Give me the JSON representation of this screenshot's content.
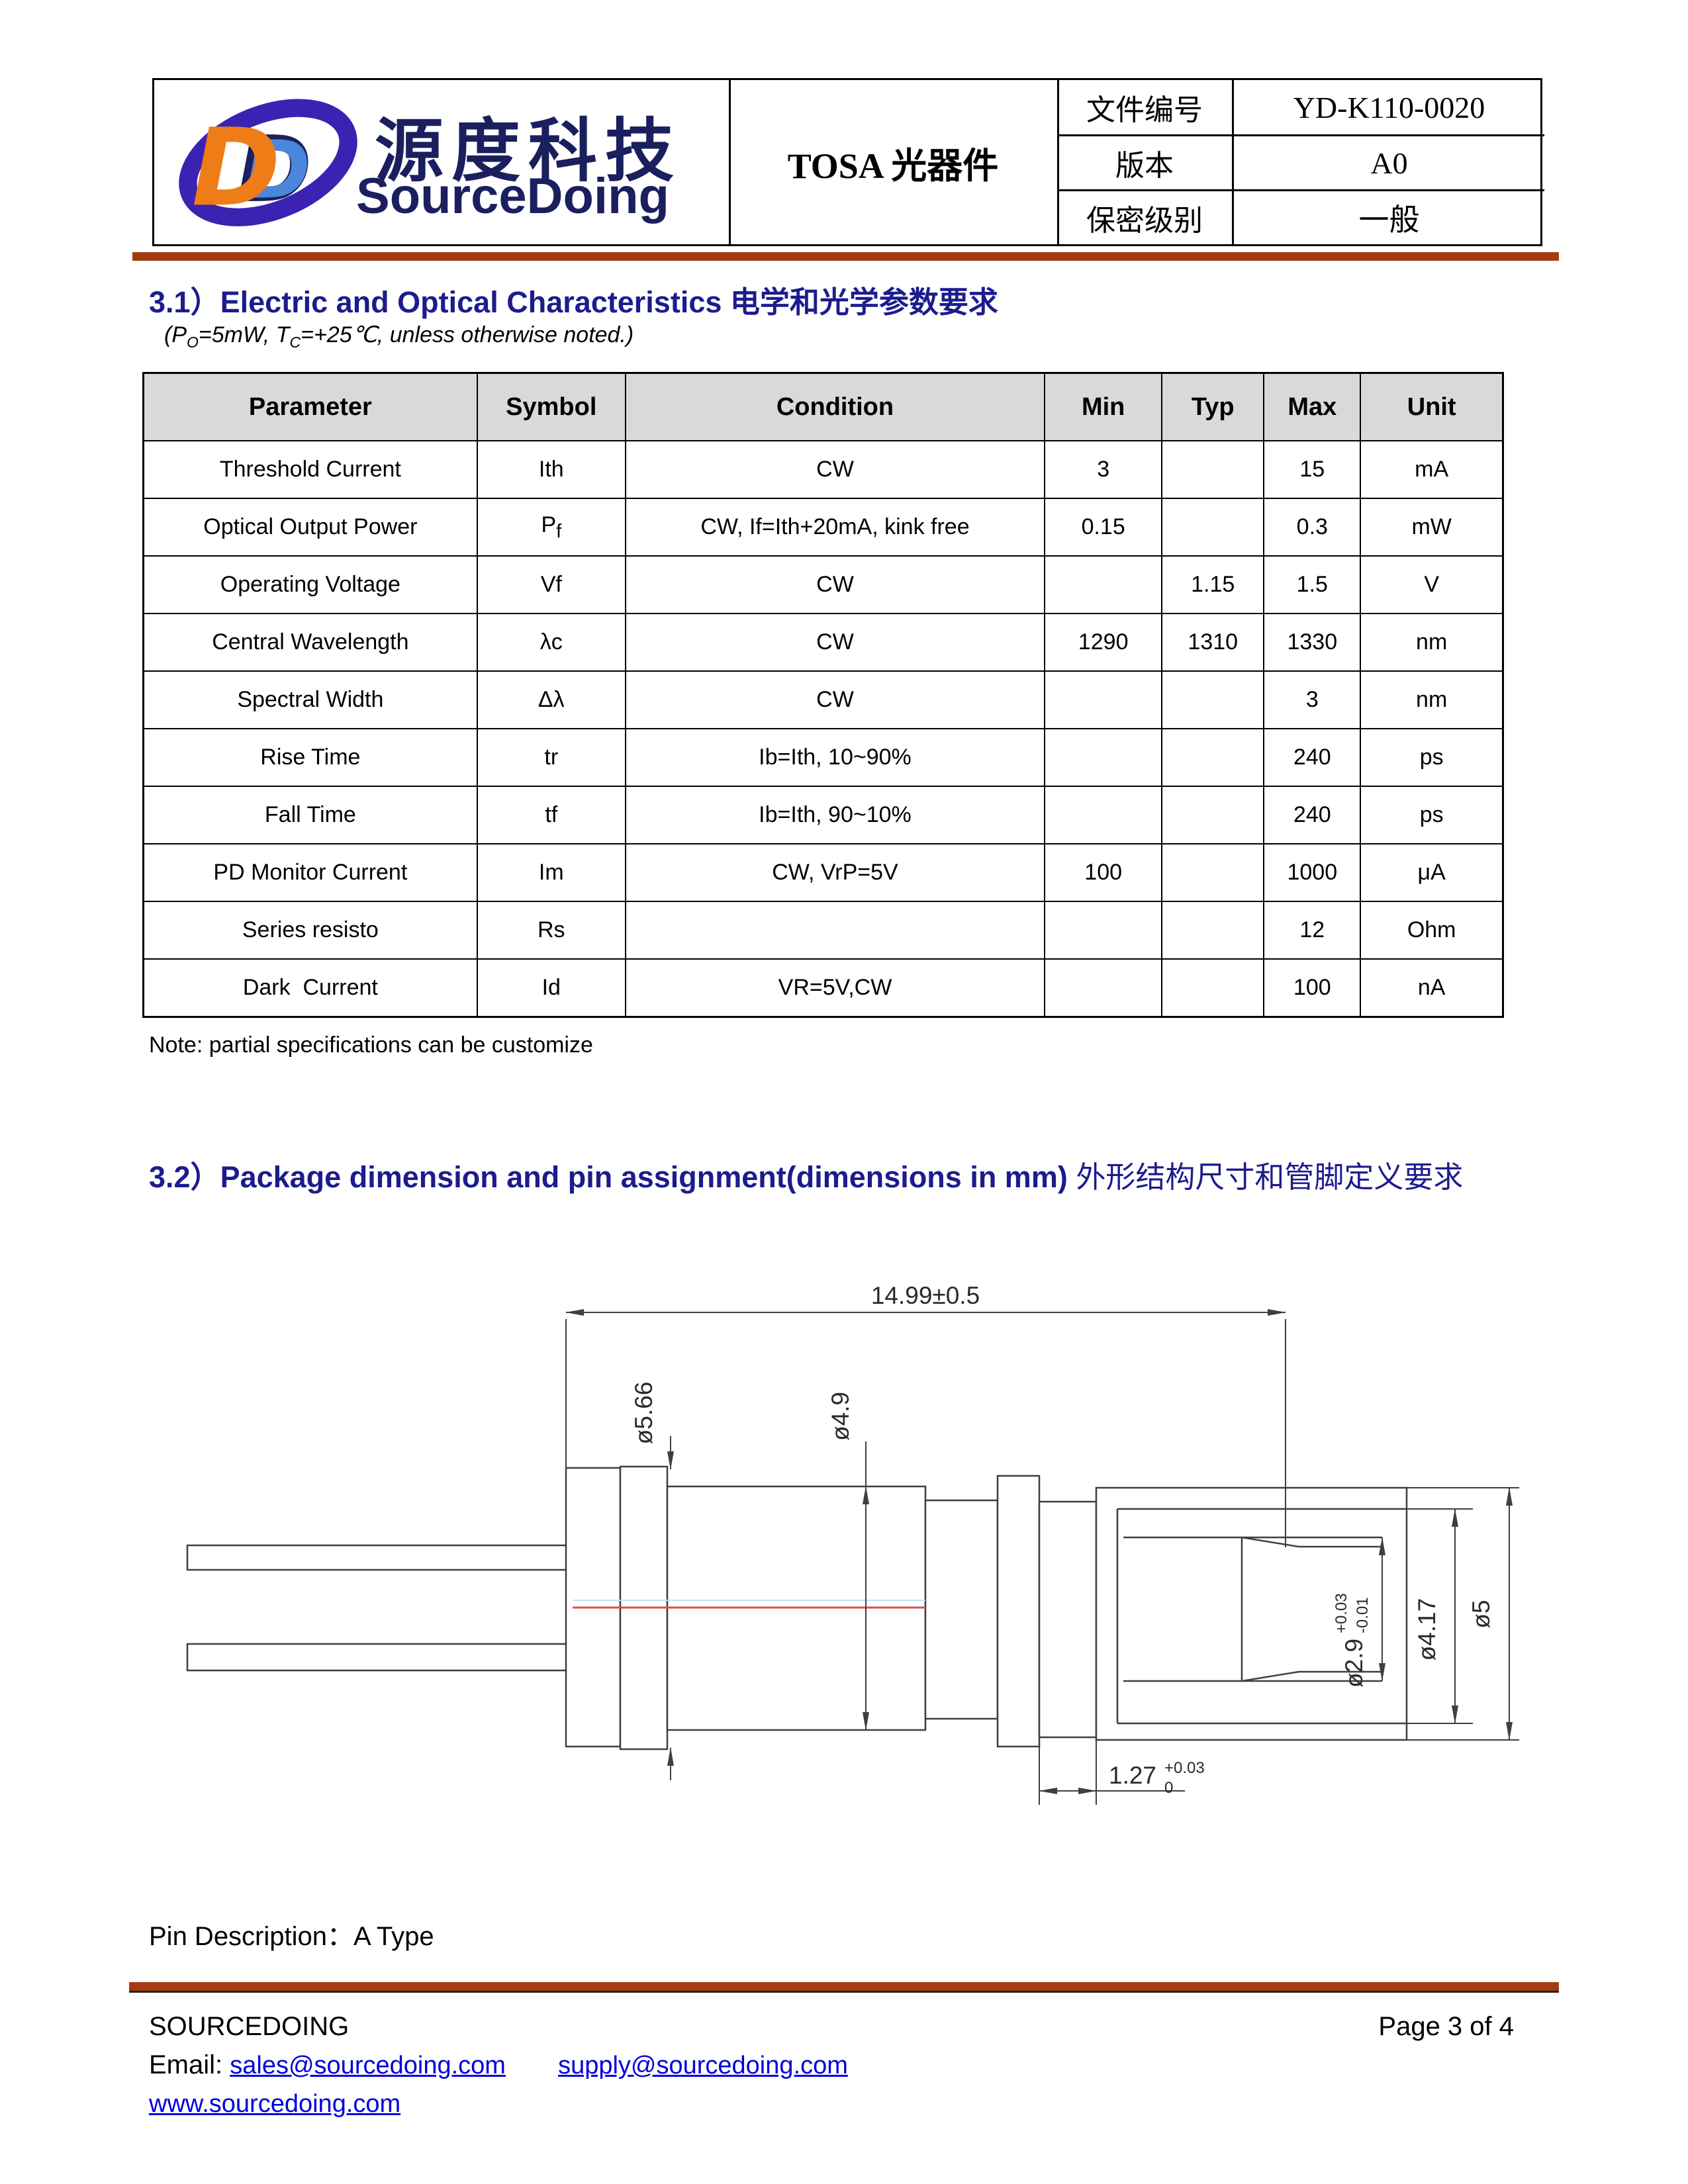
{
  "header": {
    "logo": {
      "monogram": "D",
      "cn": "源度科技",
      "en": "SourceDoing"
    },
    "title": "TOSA 光器件",
    "fields": [
      {
        "label": "文件编号",
        "value": "YD-K110-0020"
      },
      {
        "label": "版本",
        "value": "A0"
      },
      {
        "label": "保密级别",
        "value": "一般"
      }
    ]
  },
  "section_31": {
    "num": "3.1）",
    "title_en": "Electric and Optical Characteristics",
    "title_zh": "电学和光学参数要求",
    "cond_p1": "(P",
    "cond_sub1": "O",
    "cond_p2": "=5mW, T",
    "cond_sub2": "C",
    "cond_p3": "=+25℃, unless otherwise noted.)"
  },
  "spec_table": {
    "columns": [
      "Parameter",
      "Symbol",
      "Condition",
      "Min",
      "Typ",
      "Max",
      "Unit"
    ],
    "rows": [
      [
        "Threshold Current",
        "Ith",
        "CW",
        "3",
        "",
        "15",
        "mA"
      ],
      [
        "Optical Output Power",
        {
          "t": "P",
          "sub": "f"
        },
        "CW, If=Ith+20mA, kink free",
        "0.15",
        "",
        "0.3",
        "mW"
      ],
      [
        "Operating Voltage",
        "Vf",
        "CW",
        "",
        "1.15",
        "1.5",
        "V"
      ],
      [
        "Central Wavelength",
        "λc",
        "CW",
        "1290",
        "1310",
        "1330",
        "nm"
      ],
      [
        "Spectral Width",
        "Δλ",
        "CW",
        "",
        "",
        "3",
        "nm"
      ],
      [
        "Rise Time",
        "tr",
        "Ib=Ith, 10~90%",
        "",
        "",
        "240",
        "ps"
      ],
      [
        "Fall Time",
        "tf",
        "Ib=Ith, 90~10%",
        "",
        "",
        "240",
        "ps"
      ],
      [
        "PD Monitor Current",
        "Im",
        "CW, VrP=5V",
        "100",
        "",
        "1000",
        "μA"
      ],
      [
        "Series resisto",
        "Rs",
        "",
        "",
        "",
        "12",
        "Ohm"
      ],
      [
        "Dark  Current",
        "Id",
        "VR=5V,CW",
        "",
        "",
        "100",
        "nA"
      ]
    ],
    "note": "Note: partial specifications can be customize"
  },
  "section_32": {
    "num": "3.2）",
    "title_en": "Package dimension and pin assignment(dimensions in mm)",
    "title_zh": "外形结构尺寸和管脚定义要求"
  },
  "drawing": {
    "dim_overall": "14.99±0.5",
    "dim_cap": "ø5.66",
    "dim_body": "ø4.9",
    "dim_bore_main": "ø2.9",
    "dim_bore_sup": "+0.03",
    "dim_bore_sub": "-0.01",
    "dim_inner": "ø4.17",
    "dim_outer": "ø5",
    "dim_offset_main": "1.27",
    "dim_offset_sup": "+0.03",
    "dim_offset_sub": "0"
  },
  "pin_description": "Pin Description：A Type",
  "footer": {
    "company": "SOURCEDOING",
    "page": "Page 3 of 4",
    "email_label": "Email:",
    "email1": "sales@sourcedoing.com",
    "email2": "supply@sourcedoing.com",
    "website": "www.sourcedoing.com"
  }
}
